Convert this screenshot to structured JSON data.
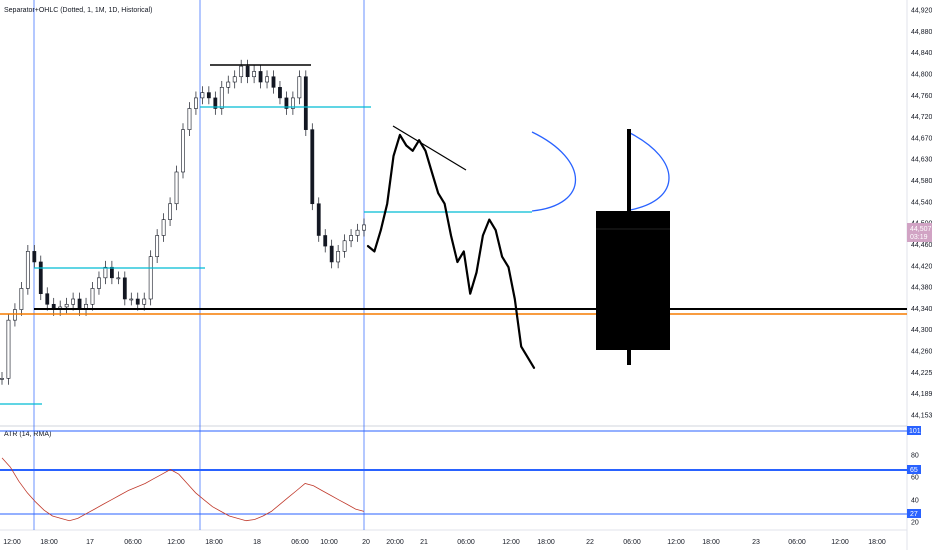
{
  "header": {
    "legend": "Separator+OHLC (Dotted, 1, 1M, 1D, Historical)"
  },
  "price_axis": {
    "ticks": [
      "44,920",
      "44,880",
      "44,840",
      "44,800",
      "44,760",
      "44,720",
      "44,670",
      "44,630",
      "44,580",
      "44,540",
      "44,500",
      "44,460",
      "44,420",
      "44,380",
      "44,340",
      "44,300",
      "44,260",
      "44,225",
      "44,189",
      "44,153"
    ],
    "last_price": "44,507",
    "countdown": "03:19",
    "last_price_color": "#d1a3c4"
  },
  "time_axis": {
    "ticks": [
      "12:00",
      "18:00",
      "17",
      "06:00",
      "12:00",
      "18:00",
      "18",
      "06:00",
      "10:00",
      "20",
      "20:00",
      "21",
      "06:00",
      "12:00",
      "18:00",
      "22",
      "06:00",
      "12:00",
      "18:00",
      "23",
      "06:00",
      "12:00",
      "18:00"
    ]
  },
  "indicator": {
    "legend": "ATR (14, RMA)",
    "axis_ticks": [
      "80",
      "60",
      "40",
      "20"
    ],
    "levels": [
      {
        "label": "101",
        "color": "#2962ff"
      },
      {
        "label": "65",
        "color": "#2962ff"
      },
      {
        "label": "27",
        "color": "#2962ff"
      }
    ],
    "line_color": "#c0392b"
  },
  "chart_data": [
    {
      "type": "line",
      "title": "",
      "xlabel": "",
      "ylabel": "",
      "ylim": [
        44140,
        44945
      ],
      "grid": false,
      "series": [
        {
          "values": [
            44230,
            44340,
            44360,
            44400,
            44470,
            44450,
            44390,
            44370,
            44360,
            44365,
            44370,
            44380,
            44360,
            44370,
            44400,
            44420,
            44440,
            44420,
            44420,
            44380,
            44380,
            44370,
            44380,
            44460,
            44500,
            44530,
            44560,
            44620,
            44700,
            44740,
            44760,
            44770,
            44760,
            44740,
            44780,
            44790,
            44800,
            44820,
            44800,
            44810,
            44790,
            44800,
            44780,
            44760,
            44740,
            44760,
            44800,
            44700,
            44560,
            44500,
            44480,
            44450,
            44470,
            44490,
            44500,
            44510,
            44520
          ]
        }
      ],
      "annotations": {
        "horizontal_levels": [
          44355,
          44347,
          44430,
          44736,
          44542,
          44168
        ],
        "resistance_top": 44814,
        "sketch_projection": [
          44480,
          44470,
          44510,
          44560,
          44650,
          44690,
          44670,
          44660,
          44680,
          44660,
          44620,
          44580,
          44560,
          44500,
          44450,
          44470,
          44390,
          44430,
          44500,
          44530,
          44510,
          44460,
          44440,
          44380,
          44290,
          44270,
          44250
        ],
        "projected_candle": {
          "open": 44540,
          "high": 44690,
          "low": 44250,
          "close": 44285
        }
      }
    },
    {
      "type": "line",
      "title": "ATR (14, RMA)",
      "ylim": [
        18,
        104
      ],
      "levels": [
        101,
        65,
        27
      ],
      "series": [
        {
          "name": "ATR (14, RMA)",
          "values": [
            80,
            72,
            60,
            50,
            42,
            35,
            30,
            28,
            26,
            28,
            32,
            36,
            40,
            44,
            48,
            52,
            55,
            58,
            62,
            66,
            70,
            66,
            58,
            50,
            44,
            38,
            34,
            30,
            28,
            26,
            27,
            30,
            34,
            40,
            46,
            52,
            58,
            56,
            52,
            48,
            44,
            40,
            36,
            34
          ]
        }
      ]
    }
  ]
}
